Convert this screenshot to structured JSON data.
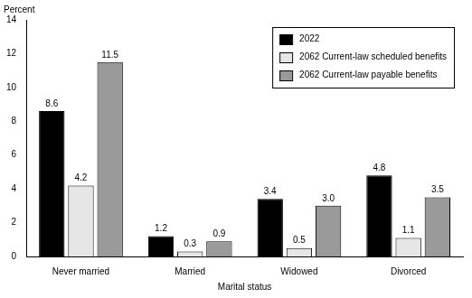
{
  "chart_data": {
    "type": "bar",
    "y_label": "Percent",
    "x_label": "Marital status",
    "categories": [
      "Never married",
      "Married",
      "Widowed",
      "Divorced"
    ],
    "series": [
      {
        "name": "2022",
        "color": "#000000",
        "values": [
          8.6,
          1.2,
          3.4,
          4.8
        ],
        "value_labels": [
          "8.6",
          "1.2",
          "3.4",
          "4.8"
        ]
      },
      {
        "name": "2062 Current-law scheduled benefits",
        "color": "#e6e6e6",
        "values": [
          4.2,
          0.3,
          0.5,
          1.1
        ],
        "value_labels": [
          "4.2",
          "0.3",
          "0.5",
          "1.1"
        ]
      },
      {
        "name": "2062 Current-law payable benefits",
        "color": "#9a9a9a",
        "values": [
          11.5,
          0.9,
          3.0,
          3.5
        ],
        "value_labels": [
          "11.5",
          "0.9",
          "3.0",
          "3.5"
        ]
      }
    ],
    "ylim": [
      0,
      14
    ],
    "yticks": [
      0,
      2,
      4,
      6,
      8,
      10,
      12,
      14
    ],
    "grid": false,
    "legend": "upper right",
    "data_labels": true
  }
}
